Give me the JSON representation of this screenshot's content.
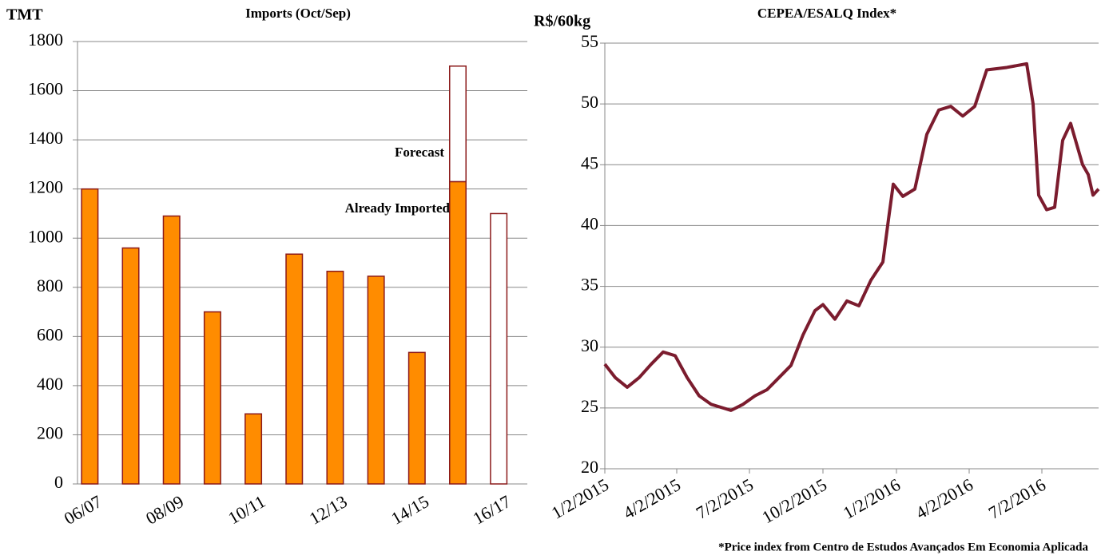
{
  "chart_data": [
    {
      "type": "bar",
      "title": "Imports (Oct/Sep)",
      "ylabel": "TMT",
      "categories": [
        "06/07",
        null,
        "08/09",
        null,
        "10/11",
        null,
        "12/13",
        null,
        "14/15",
        null,
        "16/17"
      ],
      "stacked": true,
      "series": [
        {
          "name": "Already Imported",
          "color": "#ff8c00",
          "edgecolor": "#8b1a1a",
          "values": [
            1200,
            960,
            1090,
            700,
            285,
            935,
            865,
            845,
            535,
            1230,
            null
          ]
        },
        {
          "name": "Forecast",
          "color": "#ffffff",
          "edgecolor": "#8b1a1a",
          "values": [
            null,
            null,
            null,
            null,
            null,
            null,
            null,
            null,
            null,
            470,
            1100
          ]
        }
      ],
      "ylim": [
        0,
        1800
      ],
      "yticks": [
        0,
        200,
        400,
        600,
        800,
        1000,
        1200,
        1400,
        1600,
        1800
      ],
      "grid": true
    },
    {
      "type": "line",
      "title": "CEPEA/ESALQ Index*",
      "ylabel": "R$/60kg",
      "footnote": "*Price index from Centro de Estudos Avançados Em Economia Aplicada",
      "x": [
        "1/2/2015",
        "1/15/2015",
        "1/30/2015",
        "2/14/2015",
        "3/1/2015",
        "3/16/2015",
        "3/31/2015",
        "4/15/2015",
        "4/30/2015",
        "5/15/2015",
        "5/30/2015",
        "6/9/2015",
        "6/24/2015",
        "7/9/2015",
        "7/24/2015",
        "8/8/2015",
        "8/23/2015",
        "9/7/2015",
        "9/22/2015",
        "10/2/2015",
        "10/17/2015",
        "11/1/2015",
        "11/16/2015",
        "12/1/2015",
        "12/16/2015",
        "12/23/2015",
        "12/29/2015",
        "1/10/2016",
        "1/25/2016",
        "2/9/2016",
        "2/24/2016",
        "3/10/2016",
        "3/25/2016",
        "4/9/2016",
        "4/24/2016",
        "5/19/2016",
        "6/13/2016",
        "6/21/2016",
        "6/28/2016",
        "7/8/2016",
        "7/18/2016",
        "7/28/2016",
        "8/7/2016",
        "8/22/2016",
        "8/29/2016",
        "9/4/2016",
        "9/11/2016"
      ],
      "series": [
        {
          "name": "CEPEA/ESALQ Index",
          "color": "#7b1c2e",
          "values": [
            28.6,
            27.5,
            26.7,
            27.5,
            28.6,
            29.6,
            29.3,
            27.5,
            26.0,
            25.3,
            25.0,
            24.8,
            25.3,
            26.0,
            26.5,
            27.5,
            28.5,
            31.0,
            33.0,
            33.5,
            32.3,
            33.8,
            33.4,
            35.5,
            37.0,
            40.5,
            43.4,
            42.4,
            43.0,
            47.5,
            49.5,
            49.8,
            49.0,
            49.8,
            52.8,
            53.0,
            53.3,
            50.0,
            42.5,
            41.3,
            41.5,
            47.0,
            48.4,
            45.0,
            44.2,
            42.5,
            43.0
          ]
        }
      ],
      "xlim": [
        "1/2/2015",
        "9/11/2016"
      ],
      "xticks": [
        "1/2/2015",
        "4/2/2015",
        "7/2/2015",
        "10/2/2015",
        "1/2/2016",
        "4/2/2016",
        "7/2/2016"
      ],
      "ylim": [
        20,
        55
      ],
      "yticks": [
        20,
        25,
        30,
        35,
        40,
        45,
        50,
        55
      ],
      "grid": true
    }
  ]
}
